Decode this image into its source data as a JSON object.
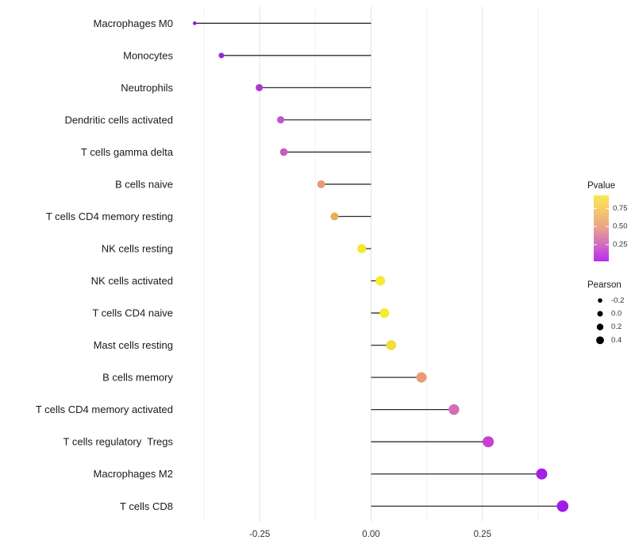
{
  "chart_data": {
    "type": "scatter",
    "variant": "lollipop",
    "title": "",
    "xlabel": "",
    "ylabel": "",
    "xlim": [
      -0.44,
      0.48
    ],
    "grid": "vertical-only",
    "legend_position": "right",
    "x_ticks": [
      {
        "value": -0.25,
        "label": "-0.25"
      },
      {
        "value": 0.0,
        "label": "0.00"
      },
      {
        "value": 0.25,
        "label": "0.25"
      }
    ],
    "x_minor_gridlines": [
      -0.375,
      -0.125,
      0.125,
      0.375
    ],
    "categories": [
      "Macrophages M0",
      "Monocytes",
      "Neutrophils",
      "Dendritic cells activated",
      "T cells gamma delta",
      "B cells naive",
      "T cells CD4 memory resting",
      "NK cells resting",
      "NK cells activated",
      "T cells CD4 naive",
      "Mast cells resting",
      "B cells memory",
      "T cells CD4 memory activated",
      "T cells regulatory  Tregs",
      "Macrophages M2",
      "T cells CD8"
    ],
    "points": [
      {
        "name": "Macrophages M0",
        "pearson": -0.396,
        "pvalue": 0.02,
        "color": "#8222DC",
        "radius": 2.3
      },
      {
        "name": "Monocytes",
        "pearson": -0.336,
        "pvalue": 0.05,
        "color": "#9229D9",
        "radius": 3.5
      },
      {
        "name": "Neutrophils",
        "pearson": -0.251,
        "pvalue": 0.12,
        "color": "#A83AD2",
        "radius": 4.5
      },
      {
        "name": "Dendritic cells activated",
        "pearson": -0.203,
        "pvalue": 0.26,
        "color": "#C355C9",
        "radius": 4.6
      },
      {
        "name": "T cells gamma delta",
        "pearson": -0.196,
        "pvalue": 0.28,
        "color": "#C65BC3",
        "radius": 4.8
      },
      {
        "name": "B cells naive",
        "pearson": -0.112,
        "pvalue": 0.55,
        "color": "#E79A74",
        "radius": 5.0
      },
      {
        "name": "T cells CD4 memory resting",
        "pearson": -0.082,
        "pvalue": 0.63,
        "color": "#EBAE55",
        "radius": 5.0
      },
      {
        "name": "NK cells resting",
        "pearson": -0.021,
        "pvalue": 0.9,
        "color": "#F4E82B",
        "radius": 5.6
      },
      {
        "name": "NK cells activated",
        "pearson": 0.021,
        "pvalue": 0.92,
        "color": "#F6EB2C",
        "radius": 6.0
      },
      {
        "name": "T cells CD4 naive",
        "pearson": 0.03,
        "pvalue": 0.91,
        "color": "#F6EB2C",
        "radius": 6.0
      },
      {
        "name": "Mast cells resting",
        "pearson": 0.045,
        "pvalue": 0.86,
        "color": "#F2DD3C",
        "radius": 6.3
      },
      {
        "name": "B cells memory",
        "pearson": 0.113,
        "pvalue": 0.56,
        "color": "#E99B78",
        "radius": 6.5
      },
      {
        "name": "T cells CD4 memory activated",
        "pearson": 0.186,
        "pvalue": 0.35,
        "color": "#D26FB5",
        "radius": 6.7
      },
      {
        "name": "T cells regulatory  Tregs",
        "pearson": 0.263,
        "pvalue": 0.18,
        "color": "#C640D4",
        "radius": 7.0
      },
      {
        "name": "Macrophages M2",
        "pearson": 0.383,
        "pvalue": 0.06,
        "color": "#A61FE6",
        "radius": 7.0
      },
      {
        "name": "T cells CD8",
        "pearson": 0.43,
        "pvalue": 0.03,
        "color": "#9F1BE8",
        "radius": 7.3
      }
    ],
    "legends": {
      "pvalue": {
        "title": "Pvalue",
        "tick_values": [
          0.75,
          0.5,
          0.25
        ],
        "tick_labels": [
          "0.75",
          "0.50",
          "0.25"
        ],
        "range_bottom_top": [
          0.02,
          0.93
        ],
        "gradient_stops": [
          {
            "offset": 0.0,
            "color": "#F9E94E"
          },
          {
            "offset": 0.25,
            "color": "#F3C66E"
          },
          {
            "offset": 0.5,
            "color": "#E9A08E"
          },
          {
            "offset": 0.78,
            "color": "#CD65C7"
          },
          {
            "offset": 1.0,
            "color": "#BB2BF1"
          }
        ]
      },
      "pearson": {
        "title": "Pearson",
        "dot_color": "#000000",
        "items": [
          {
            "label": "-0.2",
            "radius": 2.8
          },
          {
            "label": "0.0",
            "radius": 3.5
          },
          {
            "label": "0.2",
            "radius": 4.2
          },
          {
            "label": "0.4",
            "radius": 4.9
          }
        ]
      }
    },
    "colors": {
      "background": "#FFFFFF",
      "stem": "#2E2E2E",
      "grid_major": "#E3E3E3",
      "grid_minor": "#F2F2F2",
      "axis_text": "#333333",
      "category_text": "#1A1A1A",
      "legend_title_text": "#1A1A1A",
      "legend_label_text": "#333333"
    }
  }
}
